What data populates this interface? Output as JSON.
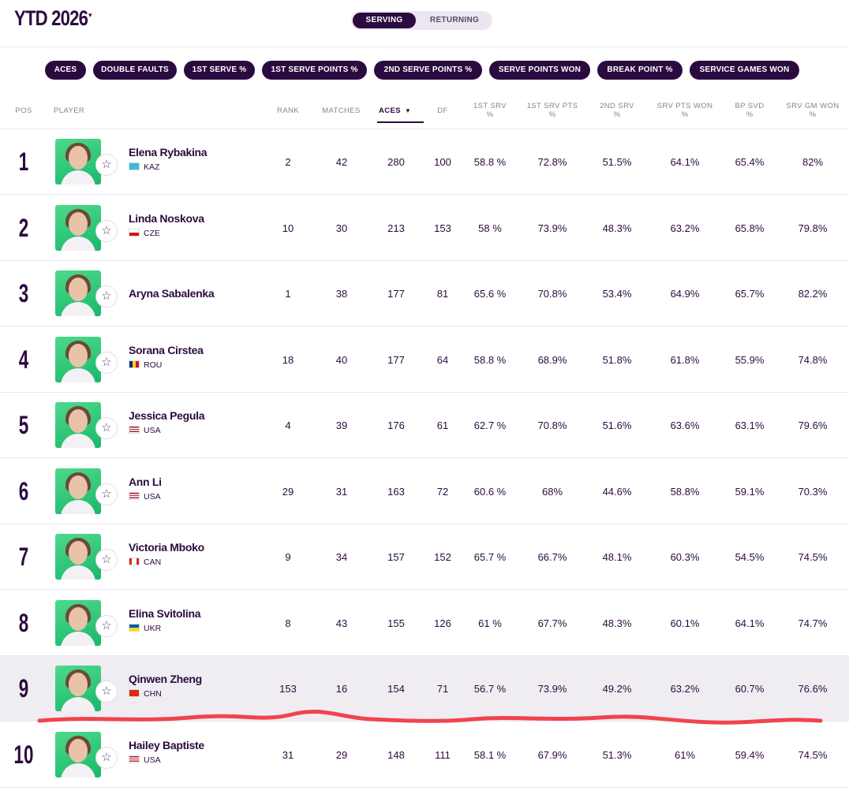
{
  "header": {
    "period_label": "YTD 2026",
    "caret": "▾",
    "toggle": {
      "active": "SERVING",
      "inactive": "RETURNING"
    }
  },
  "filters": [
    "ACES",
    "DOUBLE FAULTS",
    "1ST SERVE %",
    "1ST SERVE POINTS %",
    "2ND SERVE POINTS %",
    "SERVE POINTS WON",
    "BREAK POINT %",
    "SERVICE GAMES WON"
  ],
  "columns": {
    "pos": "POS",
    "player": "PLAYER",
    "rank": "RANK",
    "matches": "MATCHES",
    "aces": "ACES",
    "df": "DF",
    "first_srv": [
      "1ST SRV",
      "%"
    ],
    "first_srv_pts": [
      "1ST SRV PTS",
      "%"
    ],
    "second_srv": [
      "2ND SRV",
      "%"
    ],
    "srv_pts_won": [
      "SRV PTS WON",
      "%"
    ],
    "bp_svd": [
      "BP SVD",
      "%"
    ],
    "srv_gm_won": [
      "SRV GM WON",
      "%"
    ],
    "sort_indicator": "▼"
  },
  "players": [
    {
      "pos": "1",
      "name": "Elena Rybakina",
      "country": "KAZ",
      "rank": "2",
      "matches": "42",
      "aces": "280",
      "df": "100",
      "first_srv": "58.8 %",
      "first_srv_pts": "72.8%",
      "second_srv": "51.5%",
      "srv_pts_won": "64.1%",
      "bp_svd": "65.4%",
      "srv_gm_won": "82%"
    },
    {
      "pos": "2",
      "name": "Linda Noskova",
      "country": "CZE",
      "rank": "10",
      "matches": "30",
      "aces": "213",
      "df": "153",
      "first_srv": "58 %",
      "first_srv_pts": "73.9%",
      "second_srv": "48.3%",
      "srv_pts_won": "63.2%",
      "bp_svd": "65.8%",
      "srv_gm_won": "79.8%"
    },
    {
      "pos": "3",
      "name": "Aryna Sabalenka",
      "country": "",
      "rank": "1",
      "matches": "38",
      "aces": "177",
      "df": "81",
      "first_srv": "65.6 %",
      "first_srv_pts": "70.8%",
      "second_srv": "53.4%",
      "srv_pts_won": "64.9%",
      "bp_svd": "65.7%",
      "srv_gm_won": "82.2%"
    },
    {
      "pos": "4",
      "name": "Sorana Cirstea",
      "country": "ROU",
      "rank": "18",
      "matches": "40",
      "aces": "177",
      "df": "64",
      "first_srv": "58.8 %",
      "first_srv_pts": "68.9%",
      "second_srv": "51.8%",
      "srv_pts_won": "61.8%",
      "bp_svd": "55.9%",
      "srv_gm_won": "74.8%"
    },
    {
      "pos": "5",
      "name": "Jessica Pegula",
      "country": "USA",
      "rank": "4",
      "matches": "39",
      "aces": "176",
      "df": "61",
      "first_srv": "62.7 %",
      "first_srv_pts": "70.8%",
      "second_srv": "51.6%",
      "srv_pts_won": "63.6%",
      "bp_svd": "63.1%",
      "srv_gm_won": "79.6%"
    },
    {
      "pos": "6",
      "name": "Ann Li",
      "country": "USA",
      "rank": "29",
      "matches": "31",
      "aces": "163",
      "df": "72",
      "first_srv": "60.6 %",
      "first_srv_pts": "68%",
      "second_srv": "44.6%",
      "srv_pts_won": "58.8%",
      "bp_svd": "59.1%",
      "srv_gm_won": "70.3%"
    },
    {
      "pos": "7",
      "name": "Victoria Mboko",
      "country": "CAN",
      "rank": "9",
      "matches": "34",
      "aces": "157",
      "df": "152",
      "first_srv": "65.7 %",
      "first_srv_pts": "66.7%",
      "second_srv": "48.1%",
      "srv_pts_won": "60.3%",
      "bp_svd": "54.5%",
      "srv_gm_won": "74.5%"
    },
    {
      "pos": "8",
      "name": "Elina Svitolina",
      "country": "UKR",
      "rank": "8",
      "matches": "43",
      "aces": "155",
      "df": "126",
      "first_srv": "61 %",
      "first_srv_pts": "67.7%",
      "second_srv": "48.3%",
      "srv_pts_won": "60.1%",
      "bp_svd": "64.1%",
      "srv_gm_won": "74.7%"
    },
    {
      "pos": "9",
      "name": "Qinwen Zheng",
      "country": "CHN",
      "rank": "153",
      "matches": "16",
      "aces": "154",
      "df": "71",
      "first_srv": "56.7 %",
      "first_srv_pts": "73.9%",
      "second_srv": "49.2%",
      "srv_pts_won": "63.2%",
      "bp_svd": "60.7%",
      "srv_gm_won": "76.6%"
    },
    {
      "pos": "10",
      "name": "Hailey Baptiste",
      "country": "USA",
      "rank": "31",
      "matches": "29",
      "aces": "148",
      "df": "111",
      "first_srv": "58.1 %",
      "first_srv_pts": "67.9%",
      "second_srv": "51.3%",
      "srv_pts_won": "61%",
      "bp_svd": "59.4%",
      "srv_gm_won": "74.5%"
    }
  ],
  "colors": {
    "brand": "#2b0b3f",
    "avatar_green": "#2bc879",
    "row_highlight": "#efedf2",
    "annotation_red": "#f0444f"
  }
}
